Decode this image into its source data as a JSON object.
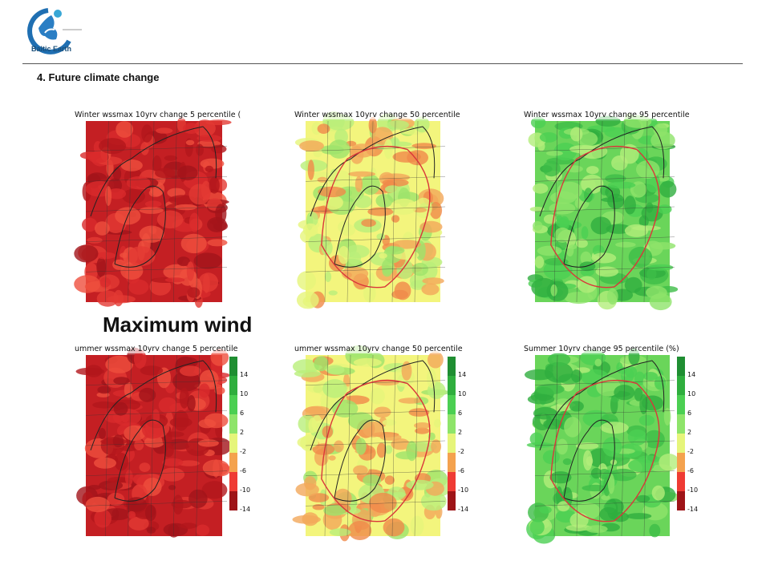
{
  "header": {
    "logo_name": "Baltic Earth",
    "section_title": "4. Future climate change"
  },
  "overlay_label": "Maximum wind",
  "colors": {
    "red_dark": "#b3171b",
    "red": "#e8453b",
    "orange": "#f28b4c",
    "yellow": "#f3f57d",
    "lightgreen": "#b9ef7a",
    "green": "#4bcf52",
    "darkgreen": "#1f8e32",
    "border_red": "#d9373a"
  },
  "panels": [
    {
      "title": "Winter wssmax 10yrv change 5 percentile (",
      "palette": "red",
      "colorbar": false
    },
    {
      "title": "Winter wssmax 10yrv change 50 percentile",
      "palette": "mixed",
      "colorbar": false
    },
    {
      "title": "Winter wssmax 10yrv change 95 percentile",
      "palette": "green",
      "colorbar": false
    },
    {
      "title": "ummer wssmax 10yrv change 5 percentile",
      "palette": "red",
      "colorbar": true
    },
    {
      "title": "ummer wssmax 10yrv change 50 percentile",
      "palette": "mixed",
      "colorbar": true
    },
    {
      "title": "Summer 10yrv change 95 percentile (%)",
      "palette": "green",
      "colorbar": true
    }
  ],
  "colorbar_ticks": [
    "14",
    "10",
    "6",
    "2",
    "-2",
    "-6",
    "-10",
    "-14"
  ],
  "colorbar_colors": [
    "#1f8e32",
    "#2fae3e",
    "#4bcf52",
    "#8ee46a",
    "#e6f57a",
    "#f4a24e",
    "#ef3b34",
    "#9e1418"
  ]
}
